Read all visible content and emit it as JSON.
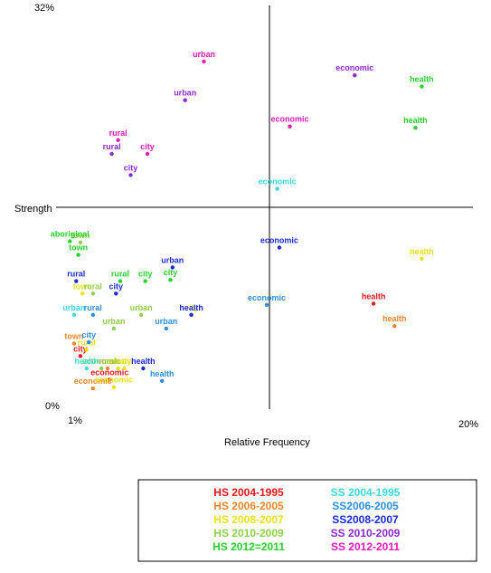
{
  "chart_data": {
    "type": "scatter",
    "xlabel": "Relative Frequency",
    "ylabel": "Strength",
    "x_min_label": "1%",
    "x_max_label": "20%",
    "y_max_label": "32%",
    "y_min_label": "0%",
    "xlim": [
      1,
      20
    ],
    "ylim": [
      0,
      32
    ],
    "cross_x": 10.5,
    "cross_y": 16,
    "series": [
      {
        "name": "HS 2004-1995",
        "color": "#e8141a",
        "points": [
          {
            "label": "city",
            "x": 1.6,
            "y": 3.9
          },
          {
            "label": "economic",
            "x": 3.0,
            "y": 2.0
          },
          {
            "label": "health",
            "x": 15.6,
            "y": 8.1
          }
        ]
      },
      {
        "name": "HS 2006-2005",
        "color": "#f0862c",
        "points": [
          {
            "label": "town",
            "x": 1.3,
            "y": 4.9
          },
          {
            "label": "rural",
            "x": 2.9,
            "y": 2.9
          },
          {
            "label": "economic",
            "x": 2.2,
            "y": 1.3
          },
          {
            "label": "health",
            "x": 16.6,
            "y": 6.3
          }
        ]
      },
      {
        "name": "HS 2008-2007",
        "color": "#e8e214",
        "points": [
          {
            "label": "rural",
            "x": 1.9,
            "y": 4.4
          },
          {
            "label": "town",
            "x": 1.7,
            "y": 8.9
          },
          {
            "label": "city",
            "x": 3.7,
            "y": 2.9
          },
          {
            "label": "economic",
            "x": 3.2,
            "y": 1.4
          },
          {
            "label": "urban",
            "x": 3.4,
            "y": 2.9
          },
          {
            "label": "city",
            "x": 6.9,
            "y": 7.2
          },
          {
            "label": "health",
            "x": 17.9,
            "y": 11.7
          }
        ]
      },
      {
        "name": "HS 2010-2009",
        "color": "#8fd14a",
        "points": [
          {
            "label": "town",
            "x": 1.6,
            "y": 13.0
          },
          {
            "label": "rural",
            "x": 2.2,
            "y": 8.9
          },
          {
            "label": "economic",
            "x": 2.6,
            "y": 2.9
          },
          {
            "label": "urban",
            "x": 3.2,
            "y": 6.1
          },
          {
            "label": "urban",
            "x": 4.5,
            "y": 7.2
          }
        ]
      },
      {
        "name": "HS 2012=2011",
        "color": "#26d12a",
        "points": [
          {
            "label": "aboriginal",
            "x": 1.1,
            "y": 13.1
          },
          {
            "label": "town",
            "x": 1.5,
            "y": 12.0
          },
          {
            "label": "rural",
            "x": 3.5,
            "y": 9.9
          },
          {
            "label": "city",
            "x": 4.7,
            "y": 9.9
          },
          {
            "label": "city",
            "x": 5.9,
            "y": 10.0
          },
          {
            "label": "health",
            "x": 17.9,
            "y": 25.5
          },
          {
            "label": "health",
            "x": 17.6,
            "y": 22.2
          }
        ]
      },
      {
        "name": "SS 2004-1995",
        "color": "#3fd9db",
        "points": [
          {
            "label": "urban",
            "x": 1.3,
            "y": 7.2
          },
          {
            "label": "health",
            "x": 1.9,
            "y": 2.9
          },
          {
            "label": "economic",
            "x": 11.0,
            "y": 17.3
          }
        ]
      },
      {
        "name": "SS2006-2005",
        "color": "#2f8ee0",
        "points": [
          {
            "label": "rural",
            "x": 2.2,
            "y": 7.2
          },
          {
            "label": "city",
            "x": 2.0,
            "y": 5.0
          },
          {
            "label": "urban",
            "x": 5.7,
            "y": 6.1
          },
          {
            "label": "health",
            "x": 5.5,
            "y": 1.9
          },
          {
            "label": "economic",
            "x": 10.5,
            "y": 8.0
          }
        ]
      },
      {
        "name": "SS2008-2007",
        "color": "#1a2bd6",
        "points": [
          {
            "label": "rural",
            "x": 1.4,
            "y": 9.9
          },
          {
            "label": "city",
            "x": 3.3,
            "y": 8.9
          },
          {
            "label": "urban",
            "x": 6.0,
            "y": 11.0
          },
          {
            "label": "health",
            "x": 6.9,
            "y": 7.2
          },
          {
            "label": "health",
            "x": 4.6,
            "y": 2.9
          },
          {
            "label": "economic",
            "x": 11.1,
            "y": 12.6
          }
        ]
      },
      {
        "name": "SS 2010-2009",
        "color": "#8a2ad0",
        "points": [
          {
            "label": "urban",
            "x": 6.6,
            "y": 24.4
          },
          {
            "label": "rural",
            "x": 3.1,
            "y": 20.1
          },
          {
            "label": "city",
            "x": 4.0,
            "y": 18.4
          },
          {
            "label": "economic",
            "x": 14.7,
            "y": 26.4
          }
        ]
      },
      {
        "name": "SS 2012-2011",
        "color": "#e419b8",
        "points": [
          {
            "label": "urban",
            "x": 7.5,
            "y": 27.5
          },
          {
            "label": "rural",
            "x": 3.4,
            "y": 21.2
          },
          {
            "label": "city",
            "x": 4.8,
            "y": 20.1
          },
          {
            "label": "economic",
            "x": 11.6,
            "y": 22.3
          }
        ]
      }
    ]
  }
}
